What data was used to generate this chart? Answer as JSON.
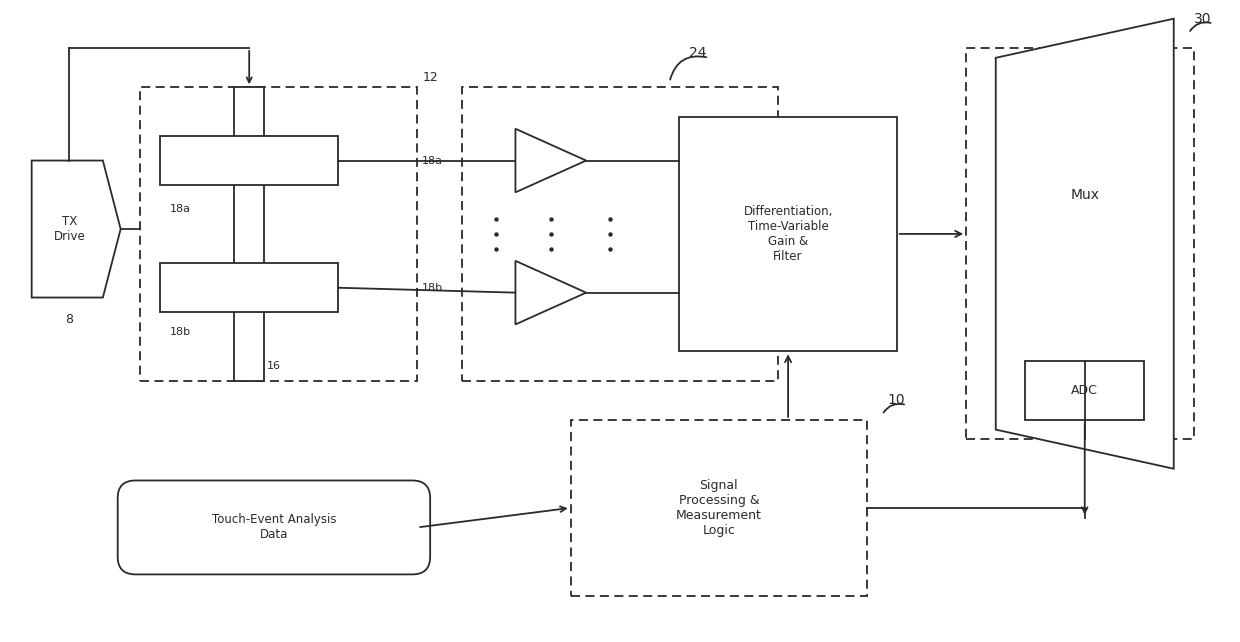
{
  "fig_width": 12.4,
  "fig_height": 6.42,
  "lc": "#2a2a2a",
  "lw": 1.3,
  "dp": [
    5,
    3
  ],
  "labels": {
    "tx_drive": "TX\nDrive",
    "num8": "8",
    "num12": "12",
    "label18a_inner": "18a",
    "label18b_inner": "18b",
    "label16": "16",
    "label18a_right": "18a",
    "label18b_right": "18b",
    "num24": "24",
    "diff_box": "Differentiation,\nTime-Variable\nGain &\nFilter",
    "mux": "Mux",
    "num30": "30",
    "adc": "ADC",
    "signal_proc": "Signal\nProcessing &\nMeasurement\nLogic",
    "num10": "10",
    "touch_event": "Touch-Event Analysis\nData"
  }
}
